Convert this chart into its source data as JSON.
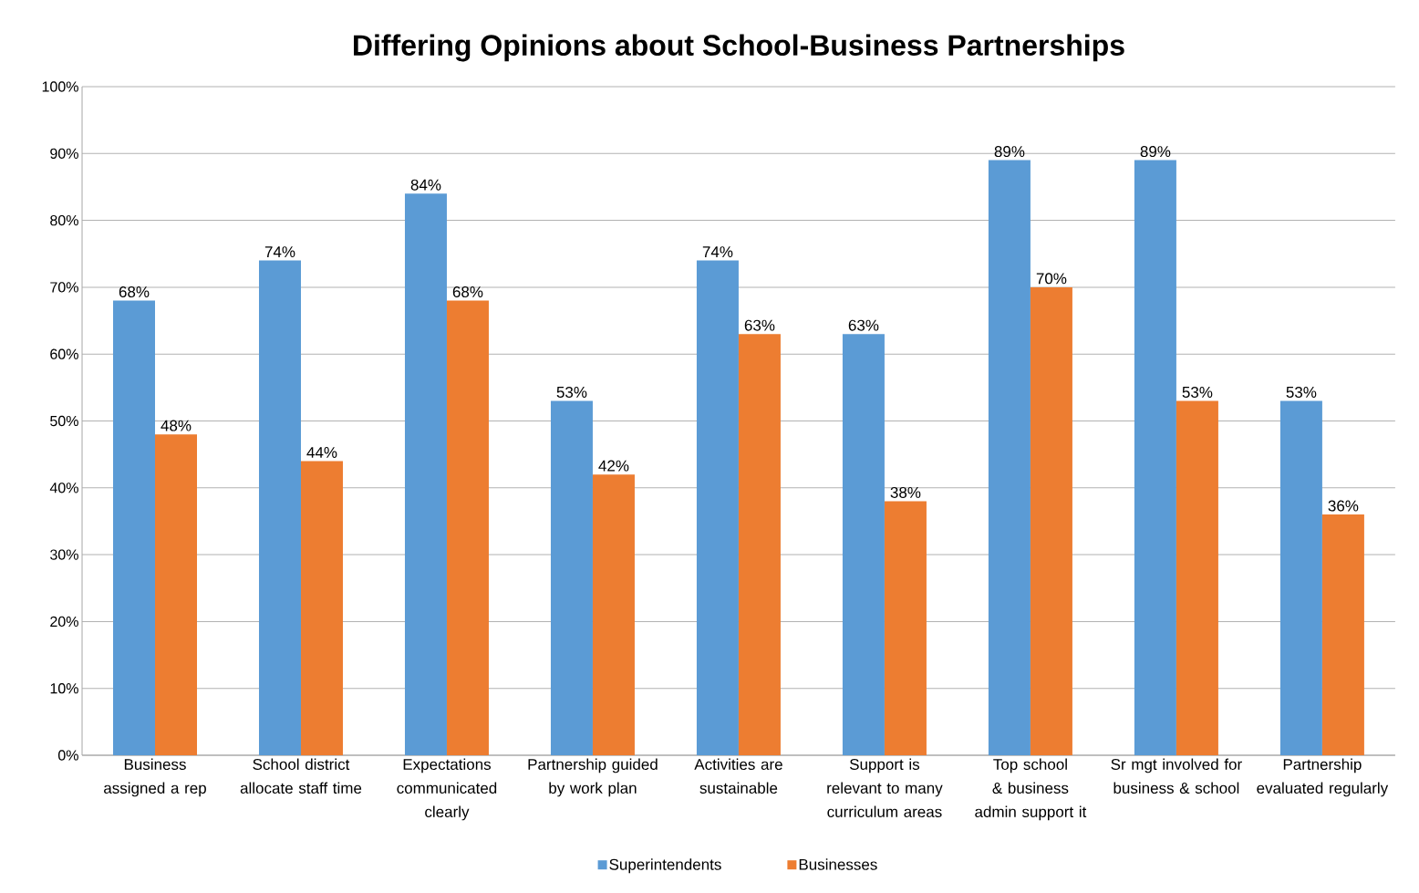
{
  "chart_data": {
    "type": "bar",
    "title": "Differing Opinions about School-Business Partnerships",
    "categories": [
      "Business assigned a rep",
      "School district allocate staff time",
      "Expectations communicated clearly",
      "Partnership guided by work plan",
      "Activities are sustainable",
      "Support is relevant to many curriculum areas",
      "Top school & business admin support it",
      "Sr mgt involved for business & school",
      "Partnership evaluated regularly"
    ],
    "series": [
      {
        "name": "Superintendents",
        "color": "#5b9bd5",
        "values": [
          68,
          74,
          84,
          53,
          74,
          63,
          89,
          89,
          53
        ],
        "value_labels": [
          "68%",
          "74%",
          "84%",
          "53%",
          "74%",
          "63%",
          "89%",
          "89%",
          "53%"
        ]
      },
      {
        "name": "Businesses",
        "color": "#ed7d31",
        "values": [
          48,
          44,
          68,
          42,
          63,
          38,
          70,
          53,
          36
        ],
        "value_labels": [
          "48%",
          "44%",
          "68%",
          "42%",
          "63%",
          "38%",
          "70%",
          "53%",
          "36%"
        ]
      }
    ],
    "ylim": [
      0,
      100
    ],
    "yticks": [
      {
        "value": 0,
        "label": "0%"
      },
      {
        "value": 10,
        "label": "10%"
      },
      {
        "value": 20,
        "label": "20%"
      },
      {
        "value": 30,
        "label": "30%"
      },
      {
        "value": 40,
        "label": "40%"
      },
      {
        "value": 50,
        "label": "50%"
      },
      {
        "value": 60,
        "label": "60%"
      },
      {
        "value": 70,
        "label": "70%"
      },
      {
        "value": 80,
        "label": "80%"
      },
      {
        "value": 90,
        "label": "90%"
      },
      {
        "value": 100,
        "label": "100%"
      }
    ],
    "grid": "y",
    "legend": "bottom"
  }
}
